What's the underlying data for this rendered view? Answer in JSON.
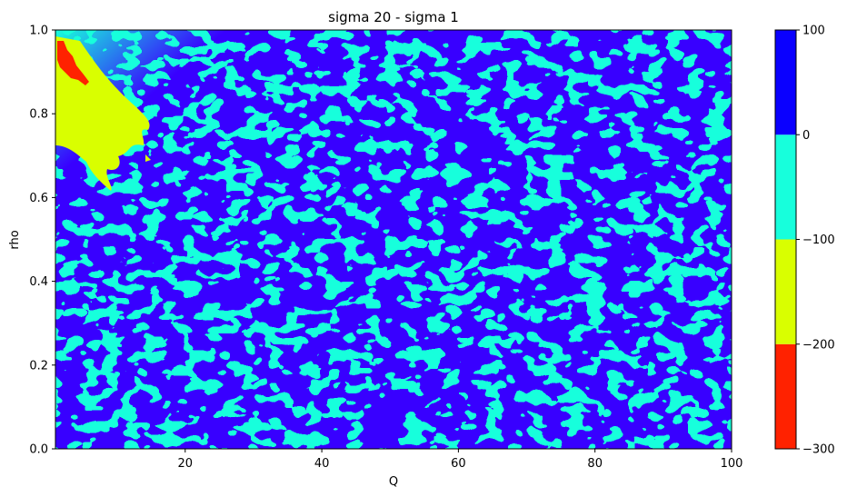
{
  "chart_data": {
    "type": "heatmap",
    "subtype": "filled-contour",
    "title": "sigma 20 - sigma 1",
    "xlabel": "Q",
    "ylabel": "rho",
    "xlim": [
      1,
      100
    ],
    "ylim": [
      0.0,
      1.0
    ],
    "x_ticks": [
      20,
      40,
      60,
      80,
      100
    ],
    "x_tick_labels": [
      "20",
      "40",
      "60",
      "80",
      "100"
    ],
    "y_ticks": [
      0.0,
      0.2,
      0.4,
      0.6,
      0.8,
      1.0
    ],
    "y_tick_labels": [
      "0.0",
      "0.2",
      "0.4",
      "0.6",
      "0.8",
      "1.0"
    ],
    "colorbar": {
      "levels": [
        -300,
        -200,
        -100,
        0,
        100
      ],
      "tick_labels": [
        "−300",
        "−200",
        "−100",
        "0",
        "100"
      ],
      "colors": [
        "#ff2200",
        "#d9ff00",
        "#17ffdc",
        "#0a00ff"
      ]
    },
    "grid": false,
    "description_of_regions": {
      "band_-300_-200": "small patch near Q≈1-6, rho≈0.86-0.97",
      "band_-200_-100": "wedge near top-left, Q≈1-15, rho≈0.62-0.95",
      "band_-100_0_and_0_100": "noisy mixture of cyan and blue patches across the rest of the domain"
    }
  }
}
